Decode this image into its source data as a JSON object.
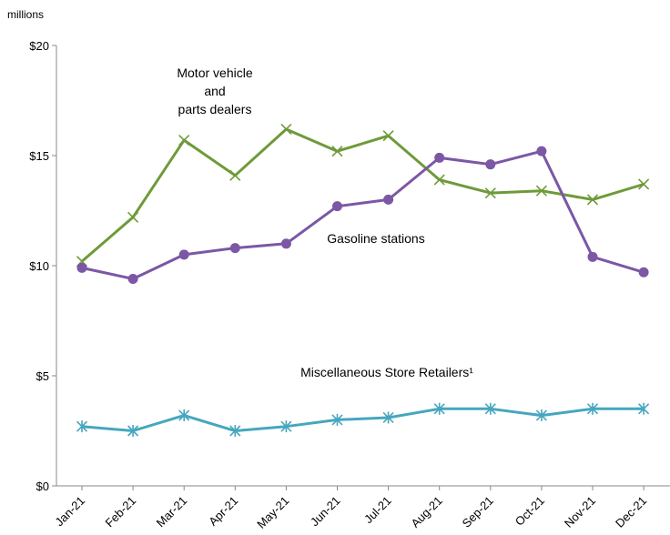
{
  "chart_data": {
    "type": "line",
    "unit_label": "millions",
    "categories": [
      "Jan-21",
      "Feb-21",
      "Mar-21",
      "Apr-21",
      "May-21",
      "Jun-21",
      "Jul-21",
      "Aug-21",
      "Sep-21",
      "Oct-21",
      "Nov-21",
      "Dec-21"
    ],
    "ylim": [
      0,
      20
    ],
    "yticks": [
      0,
      5,
      10,
      15,
      20
    ],
    "ytick_labels": [
      "$0",
      "$5",
      "$10",
      "$15",
      "$20"
    ],
    "grid": false,
    "series": [
      {
        "name": "Motor vehicle and parts dealers",
        "label_lines": [
          "Motor vehicle",
          "and",
          "parts dealers"
        ],
        "color": "#6e9a3a",
        "marker": "x",
        "values": [
          10.2,
          12.2,
          15.7,
          14.1,
          16.2,
          15.2,
          15.9,
          13.9,
          13.3,
          13.4,
          13.0,
          13.7
        ]
      },
      {
        "name": "Gasoline stations",
        "label_lines": [
          "Gasoline stations"
        ],
        "color": "#7b57a6",
        "marker": "circle",
        "values": [
          9.9,
          9.4,
          10.5,
          10.8,
          11.0,
          12.7,
          13.0,
          14.9,
          14.6,
          15.2,
          10.4,
          9.7
        ]
      },
      {
        "name": "Miscellaneous Store Retailers¹",
        "label_lines": [
          "Miscellaneous Store Retailers¹"
        ],
        "color": "#46a6bf",
        "marker": "asterisk",
        "values": [
          2.7,
          2.5,
          3.2,
          2.5,
          2.7,
          3.0,
          3.1,
          3.5,
          3.5,
          3.2,
          3.5,
          3.5
        ]
      }
    ]
  }
}
